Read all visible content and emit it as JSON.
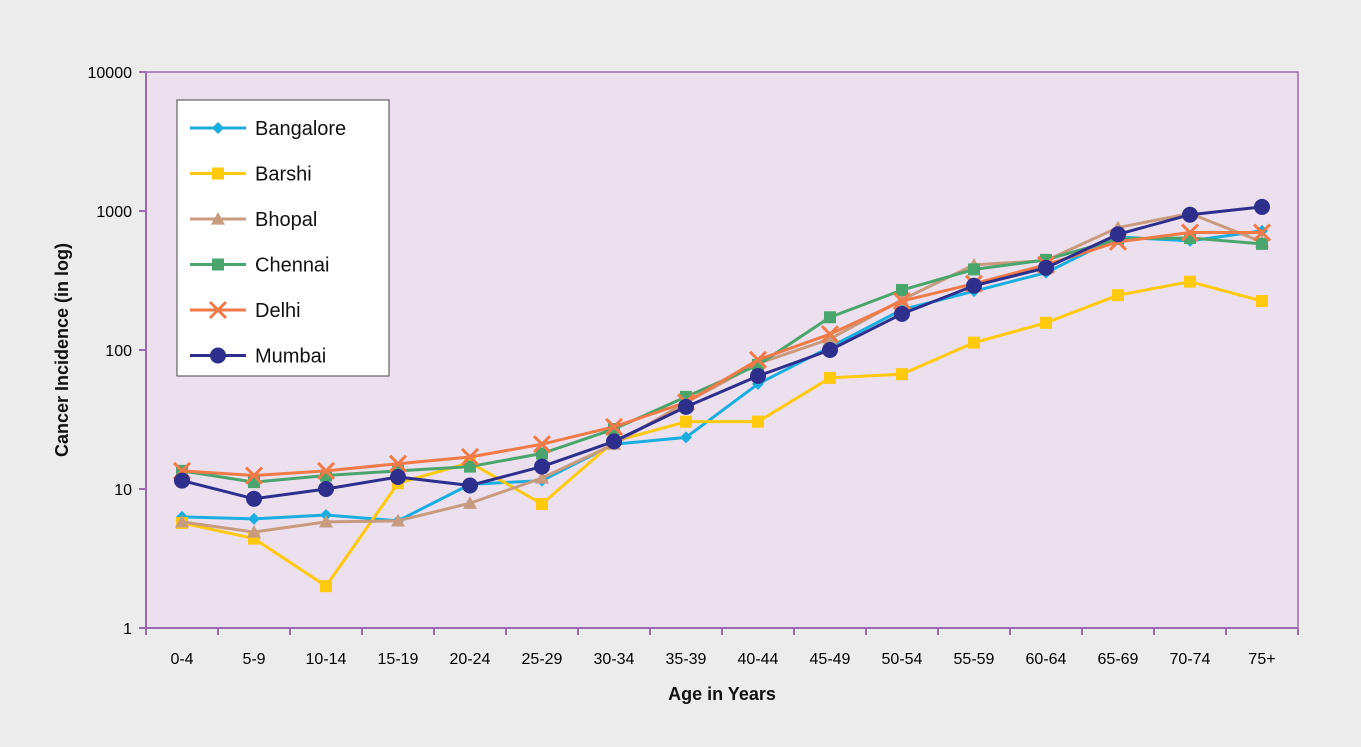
{
  "chart_data": {
    "type": "line",
    "xlabel": "Age in Years",
    "ylabel": "Cancer Incidence (in log)",
    "yscale": "log",
    "ylim": [
      1,
      10000
    ],
    "yticks": [
      "1",
      "10",
      "100",
      "1000",
      "10000"
    ],
    "grid": false,
    "legend_position": "top-left",
    "categories": [
      "0-4",
      "5-9",
      "10-14",
      "15-19",
      "20-24",
      "25-29",
      "30-34",
      "35-39",
      "40-44",
      "45-49",
      "50-54",
      "55-59",
      "60-64",
      "65-69",
      "70-74",
      "75+"
    ],
    "series": [
      {
        "name": "Bangalore",
        "color": "#1aaee0",
        "marker": "diamond",
        "values": [
          6.3,
          6.1,
          6.5,
          5.9,
          10.8,
          11.5,
          21,
          23.5,
          57,
          105,
          195,
          265,
          360,
          650,
          610,
          720
        ]
      },
      {
        "name": "Barshi",
        "color": "#ffc90e",
        "marker": "square",
        "values": [
          5.7,
          4.4,
          2.0,
          11,
          15.5,
          7.8,
          22,
          30.5,
          30.5,
          63,
          67,
          113,
          157,
          248,
          310,
          225
        ]
      },
      {
        "name": "Bhopal",
        "color": "#c89a7e",
        "marker": "triangle",
        "values": [
          5.8,
          4.9,
          5.8,
          5.9,
          7.9,
          12,
          21,
          42,
          80,
          120,
          230,
          410,
          440,
          760,
          960,
          600
        ]
      },
      {
        "name": "Chennai",
        "color": "#4aa56d",
        "marker": "square",
        "values": [
          13.5,
          11.2,
          12.5,
          13.5,
          14.5,
          18,
          27,
          46,
          78,
          172,
          270,
          380,
          445,
          630,
          640,
          580
        ]
      },
      {
        "name": "Delhi",
        "color": "#f07a48",
        "marker": "x",
        "values": [
          13.5,
          12.5,
          13.5,
          15.2,
          17,
          21,
          28,
          42,
          85,
          130,
          225,
          300,
          410,
          600,
          700,
          700
        ]
      },
      {
        "name": "Mumbai",
        "color": "#2e2f8d",
        "marker": "circle",
        "values": [
          11.5,
          8.5,
          10,
          12.2,
          10.6,
          14.5,
          22,
          39,
          65,
          100,
          182,
          290,
          390,
          680,
          940,
          1070
        ]
      }
    ]
  },
  "colors": {
    "background": "#ececec",
    "plot_area": "#ece0ee",
    "axis": "#9b6bb0",
    "legend_background": "#ffffff"
  }
}
